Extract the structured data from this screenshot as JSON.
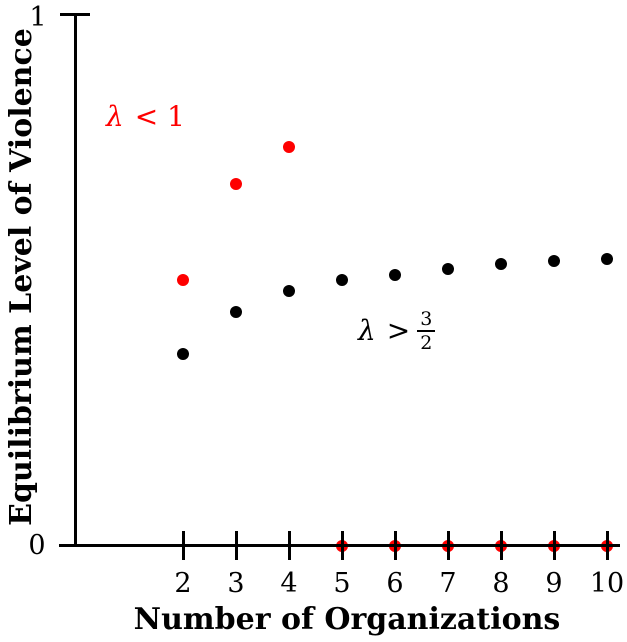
{
  "figure": {
    "background": "#ffffff",
    "accent_red": "#fe0000",
    "axis_color": "#000000"
  },
  "chart_data": {
    "type": "scatter",
    "title": "",
    "xlabel": "Number of Organizations",
    "ylabel": "Equilibrium Level of Violence",
    "x": [
      2,
      3,
      4,
      5,
      6,
      7,
      8,
      9,
      10
    ],
    "xticks": [
      "2",
      "3",
      "4",
      "5",
      "6",
      "7",
      "8",
      "9",
      "10"
    ],
    "ylim": [
      0,
      1
    ],
    "yticks": [
      "0",
      "1"
    ],
    "grid": false,
    "legend_position": "none",
    "series": [
      {
        "name": "lambda < 1",
        "color": "#fe0000",
        "marker": "dot",
        "values": [
          0.5,
          0.68,
          0.75,
          0,
          0,
          0,
          0,
          0,
          0
        ]
      },
      {
        "name": "lambda > 3/2",
        "color": "#000000",
        "marker": "dot",
        "values": [
          0.36,
          0.44,
          0.48,
          0.5,
          0.51,
          0.52,
          0.53,
          0.535,
          0.54
        ]
      }
    ],
    "annotations": [
      {
        "text": "λ < 1",
        "symbol": "λ",
        "relation": "< 1",
        "color": "#fe0000"
      },
      {
        "text": "λ > 3/2",
        "symbol": "λ",
        "relation": ">",
        "numerator": "3",
        "denominator": "2",
        "color": "#000000"
      }
    ]
  }
}
